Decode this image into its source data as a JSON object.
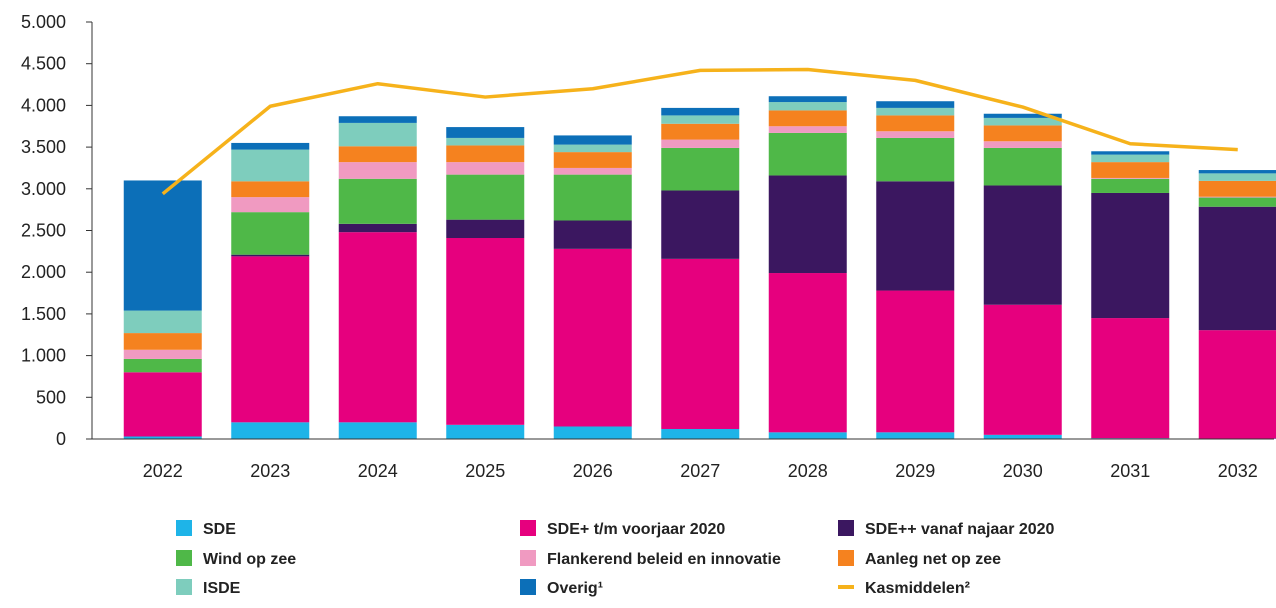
{
  "chart_data": {
    "type": "bar",
    "stacked": true,
    "title": "",
    "xlabel": "",
    "ylabel": "",
    "ylim": [
      0,
      5000
    ],
    "ytick_values": [
      0,
      500,
      1000,
      1500,
      2000,
      2500,
      3000,
      3500,
      4000,
      4500,
      5000
    ],
    "ytick_labels": [
      "0",
      "500",
      "1.000",
      "1.500",
      "2.000",
      "2.500",
      "3.000",
      "3.500",
      "4.000",
      "4.500",
      "5.000"
    ],
    "grid": false,
    "legend_position": "bottom",
    "categories": [
      "2022",
      "2023",
      "2024",
      "2025",
      "2026",
      "2027",
      "2028",
      "2029",
      "2030",
      "2031",
      "2032"
    ],
    "series": [
      {
        "name": "SDE",
        "color": "#1eb4e8",
        "values": [
          30,
          200,
          200,
          170,
          150,
          120,
          80,
          80,
          50,
          10,
          5
        ]
      },
      {
        "name": "SDE+ t/m voorjaar 2020",
        "color": "#e6007e",
        "values": [
          770,
          1990,
          2280,
          2240,
          2130,
          2040,
          1910,
          1700,
          1560,
          1440,
          1300
        ]
      },
      {
        "name": "SDE++ vanaf najaar 2020",
        "color": "#3b1760",
        "values": [
          0,
          20,
          100,
          220,
          340,
          820,
          1170,
          1310,
          1430,
          1500,
          1480
        ]
      },
      {
        "name": "Wind op zee",
        "color": "#4fb848",
        "values": [
          160,
          510,
          540,
          540,
          550,
          510,
          510,
          520,
          450,
          170,
          110
        ]
      },
      {
        "name": "Flankerend beleid en innovatie",
        "color": "#f09ac1",
        "values": [
          110,
          180,
          200,
          150,
          80,
          100,
          80,
          80,
          80,
          10,
          10
        ]
      },
      {
        "name": "Aanleg net op zee",
        "color": "#f5821f",
        "values": [
          200,
          190,
          190,
          200,
          190,
          190,
          190,
          190,
          190,
          190,
          190
        ]
      },
      {
        "name": "ISDE",
        "color": "#7ecdbd",
        "values": [
          270,
          380,
          280,
          90,
          90,
          100,
          100,
          90,
          90,
          90,
          90
        ]
      },
      {
        "name": "Overig¹",
        "color": "#0c6fb8",
        "values": [
          1560,
          80,
          80,
          130,
          110,
          90,
          70,
          80,
          50,
          40,
          40
        ]
      }
    ],
    "line_series": [
      {
        "name": "Kasmiddelen²",
        "color": "#f6b21b",
        "values": [
          2940,
          3990,
          4260,
          4100,
          4200,
          4420,
          4430,
          4300,
          3980,
          3540,
          3470
        ]
      }
    ],
    "legend_rows": [
      [
        "SDE",
        "SDE+ t/m voorjaar 2020",
        "SDE++ vanaf najaar 2020"
      ],
      [
        "Wind op zee",
        "Flankerend beleid en innovatie",
        "Aanleg net op zee"
      ],
      [
        "ISDE",
        "Overig¹",
        "Kasmiddelen²"
      ]
    ]
  }
}
